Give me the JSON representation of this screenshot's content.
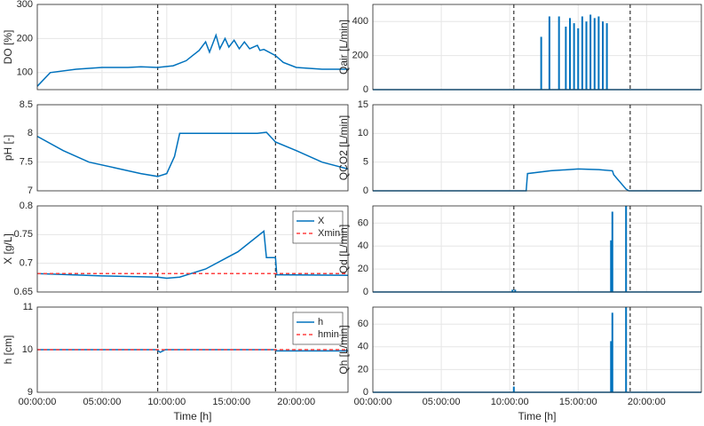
{
  "chart_data": [
    {
      "type": "line",
      "ylabel": "DO [%]",
      "xlim": [
        0,
        24
      ],
      "xticks": [
        0,
        5,
        10,
        15,
        20
      ],
      "show_xticklabels": false,
      "ylim": [
        50,
        300
      ],
      "yticks": [
        100,
        200,
        300
      ],
      "grid": true,
      "vlines": [
        9.3,
        18.4
      ],
      "x": [
        0,
        1,
        3,
        5,
        7,
        8,
        9.3,
        10.5,
        11.5,
        12,
        12.5,
        13,
        13.3,
        13.8,
        14.1,
        14.5,
        14.8,
        15.2,
        15.6,
        16,
        16.4,
        17,
        17.2,
        17.5,
        18.4,
        19,
        20,
        22,
        24
      ],
      "series": [
        {
          "name": "DO",
          "color": "#0072bd",
          "values": [
            60,
            100,
            110,
            115,
            115,
            117,
            115,
            120,
            135,
            150,
            165,
            190,
            160,
            210,
            170,
            200,
            175,
            195,
            170,
            190,
            170,
            180,
            165,
            168,
            150,
            130,
            115,
            110,
            110
          ]
        }
      ]
    },
    {
      "type": "line",
      "ylabel": "pH [-]",
      "xlim": [
        0,
        24
      ],
      "xticks": [
        0,
        5,
        10,
        15,
        20
      ],
      "show_xticklabels": false,
      "ylim": [
        7,
        8.5
      ],
      "yticks": [
        7,
        7.5,
        8,
        8.5
      ],
      "grid": true,
      "vlines": [
        9.3,
        18.4
      ],
      "x": [
        0,
        2,
        4,
        6,
        8,
        9.3,
        10,
        10.6,
        11,
        14,
        17,
        17.7,
        18.4,
        20,
        22,
        24
      ],
      "series": [
        {
          "name": "pH",
          "color": "#0072bd",
          "values": [
            7.95,
            7.7,
            7.5,
            7.4,
            7.3,
            7.25,
            7.3,
            7.6,
            8.0,
            8.0,
            8.0,
            8.02,
            7.85,
            7.7,
            7.5,
            7.38
          ]
        }
      ]
    },
    {
      "type": "line",
      "ylabel": "X [g/L]",
      "xlim": [
        0,
        24
      ],
      "xticks": [
        0,
        5,
        10,
        15,
        20
      ],
      "show_xticklabels": false,
      "ylim": [
        0.65,
        0.8
      ],
      "yticks": [
        0.65,
        0.7,
        0.75,
        0.8
      ],
      "grid": true,
      "vlines": [
        9.3,
        18.4
      ],
      "legend": "upper right",
      "x": [
        0,
        5,
        9.3,
        10,
        11,
        13,
        15.5,
        17.5,
        17.7,
        18.4,
        18.5,
        24
      ],
      "series": [
        {
          "name": "X",
          "color": "#0072bd",
          "values": [
            0.682,
            0.678,
            0.676,
            0.674,
            0.676,
            0.69,
            0.72,
            0.756,
            0.71,
            0.71,
            0.68,
            0.679
          ]
        },
        {
          "name": "Xmin",
          "color": "#ff4040",
          "dashed": true,
          "values": [
            0.682,
            0.682,
            0.682,
            0.682,
            0.682,
            0.682,
            0.682,
            0.682,
            0.682,
            0.682,
            0.682,
            0.682
          ]
        }
      ]
    },
    {
      "type": "line",
      "ylabel": "h [cm]",
      "xlabel": "Time [h]",
      "xlim": [
        0,
        24
      ],
      "xticks": [
        {
          "value": 0,
          "label": "00:00:00"
        },
        {
          "value": 5,
          "label": "05:00:00"
        },
        {
          "value": 10,
          "label": "10:00:00"
        },
        {
          "value": 15,
          "label": "15:00:00"
        },
        {
          "value": 20,
          "label": "20:00:00"
        }
      ],
      "show_xticklabels": true,
      "ylim": [
        9,
        11
      ],
      "yticks": [
        9,
        10,
        11
      ],
      "grid": true,
      "vlines": [
        9.3,
        18.4
      ],
      "legend": "upper right",
      "x": [
        0,
        9.2,
        9.5,
        9.9,
        10.2,
        18.4,
        18.5,
        24
      ],
      "series": [
        {
          "name": "h",
          "color": "#0072bd",
          "values": [
            10,
            10,
            9.94,
            10,
            10,
            10,
            9.97,
            9.97
          ]
        },
        {
          "name": "hmin",
          "color": "#ff4040",
          "dashed": true,
          "values": [
            10,
            10,
            10,
            10,
            10,
            10,
            10,
            10
          ]
        }
      ]
    },
    {
      "type": "spike",
      "ylabel": "Qair [L/min]",
      "xlim": [
        0,
        24
      ],
      "xticks": [
        0,
        5,
        10,
        15,
        20
      ],
      "show_xticklabels": false,
      "ylim": [
        0,
        500
      ],
      "yticks": [
        0,
        200,
        400
      ],
      "grid": true,
      "vlines": [
        10.3,
        18.8
      ],
      "x": [
        12.3,
        12.9,
        13.6,
        14.1,
        14.4,
        14.7,
        15.0,
        15.3,
        15.6,
        15.9,
        16.2,
        16.5,
        16.8,
        17.1
      ],
      "series": [
        {
          "name": "Qair",
          "color": "#0072bd",
          "values": [
            310,
            430,
            430,
            370,
            420,
            390,
            360,
            430,
            400,
            440,
            420,
            430,
            400,
            390
          ]
        }
      ]
    },
    {
      "type": "line",
      "ylabel": "QCO2 [L/min]",
      "xlim": [
        0,
        24
      ],
      "xticks": [
        0,
        5,
        10,
        15,
        20
      ],
      "show_xticklabels": false,
      "ylim": [
        0,
        15
      ],
      "yticks": [
        0,
        5,
        10,
        15
      ],
      "grid": true,
      "vlines": [
        10.3,
        18.8
      ],
      "x": [
        0,
        11.2,
        11.3,
        13,
        15,
        16.5,
        17.5,
        17.6,
        18.5,
        18.7,
        24
      ],
      "series": [
        {
          "name": "QCO2",
          "color": "#0072bd",
          "values": [
            0,
            0,
            3,
            3.5,
            3.8,
            3.7,
            3.5,
            2.8,
            0.3,
            0,
            0
          ]
        }
      ]
    },
    {
      "type": "spike",
      "ylabel": "Qd [L/min]",
      "xlim": [
        0,
        24
      ],
      "xticks": [
        0,
        5,
        10,
        15,
        20
      ],
      "show_xticklabels": false,
      "ylim": [
        0,
        75
      ],
      "yticks": [
        0,
        20,
        40,
        60
      ],
      "grid": true,
      "vlines": [
        10.3,
        18.8
      ],
      "x": [
        10.2,
        10.4,
        17.4,
        17.5,
        18.5
      ],
      "series": [
        {
          "name": "Qd",
          "color": "#0072bd",
          "values": [
            2,
            2,
            45,
            70,
            75
          ]
        }
      ]
    },
    {
      "type": "spike",
      "ylabel": "Qh [L/min]",
      "xlabel": "Time [h]",
      "xlim": [
        0,
        24
      ],
      "xticks": [
        {
          "value": 0,
          "label": "00:00:00"
        },
        {
          "value": 5,
          "label": "05:00:00"
        },
        {
          "value": 10,
          "label": "10:00:00"
        },
        {
          "value": 15,
          "label": "15:00:00"
        },
        {
          "value": 20,
          "label": "20:00:00"
        }
      ],
      "show_xticklabels": true,
      "ylim": [
        0,
        75
      ],
      "yticks": [
        0,
        20,
        40,
        60
      ],
      "grid": true,
      "vlines": [
        10.3,
        18.8
      ],
      "x": [
        10.3,
        17.4,
        17.5,
        18.5
      ],
      "series": [
        {
          "name": "Qh",
          "color": "#0072bd",
          "values": [
            5,
            45,
            70,
            75
          ]
        }
      ]
    }
  ]
}
